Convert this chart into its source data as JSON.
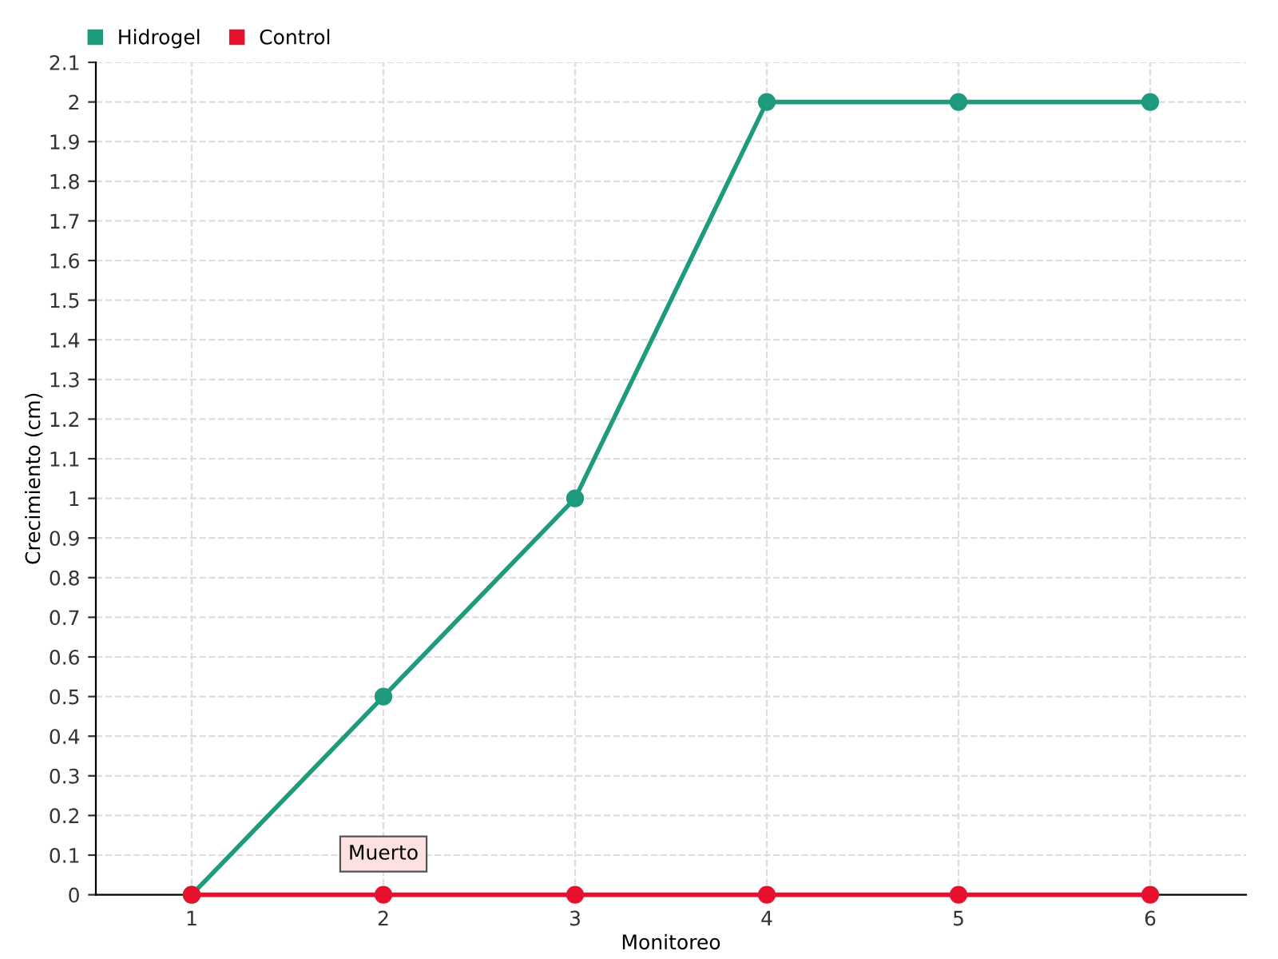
{
  "chart_data": {
    "type": "line",
    "xlabel": "Monitoreo",
    "ylabel": "Crecimiento (cm)",
    "x": [
      1,
      2,
      3,
      4,
      5,
      6
    ],
    "series": [
      {
        "name": "Hidrogel",
        "color": "#1e9a7c",
        "values": [
          0,
          0.5,
          1,
          2,
          2,
          2
        ]
      },
      {
        "name": "Control",
        "color": "#e8112d",
        "values": [
          0,
          0,
          0,
          0,
          0,
          0
        ]
      }
    ],
    "xlim": [
      0.5,
      6.5
    ],
    "xticks": [
      1,
      2,
      3,
      4,
      5,
      6
    ],
    "ylim": [
      0,
      2.1
    ],
    "yticks": [
      0,
      0.1,
      0.2,
      0.3,
      0.4,
      0.5,
      0.6,
      0.7,
      0.8,
      0.9,
      1,
      1.1,
      1.2,
      1.3,
      1.4,
      1.5,
      1.6,
      1.7,
      1.8,
      1.9,
      2,
      2.1
    ],
    "annotations": [
      {
        "text": "Muerto",
        "x": 2,
        "y": 0
      }
    ],
    "grid": true,
    "legend": "top left",
    "marker": "circle",
    "line_style": "solid"
  }
}
